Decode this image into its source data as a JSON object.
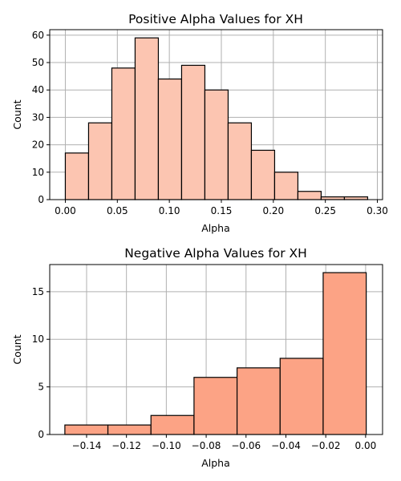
{
  "chart_data": [
    {
      "type": "bar",
      "title": "Positive Alpha Values for XH",
      "xlabel": "Alpha",
      "ylabel": "Count",
      "bar_color": "#fcc5b1",
      "xlim": [
        -0.015,
        0.305
      ],
      "ylim": [
        0,
        62
      ],
      "xticks": [
        0.0,
        0.05,
        0.1,
        0.15,
        0.2,
        0.25,
        0.3
      ],
      "xtick_labels": [
        "0.00",
        "0.05",
        "0.10",
        "0.15",
        "0.20",
        "0.25",
        "0.30"
      ],
      "yticks": [
        0,
        10,
        20,
        30,
        40,
        50,
        60
      ],
      "ytick_labels": [
        "0",
        "10",
        "20",
        "30",
        "40",
        "50",
        "60"
      ],
      "grid": true,
      "bins": [
        {
          "x0": 0.0,
          "x1": 0.02236,
          "count": 17
        },
        {
          "x0": 0.02236,
          "x1": 0.04472,
          "count": 28
        },
        {
          "x0": 0.04472,
          "x1": 0.06708,
          "count": 48
        },
        {
          "x0": 0.06708,
          "x1": 0.08944,
          "count": 59
        },
        {
          "x0": 0.08944,
          "x1": 0.1118,
          "count": 44
        },
        {
          "x0": 0.1118,
          "x1": 0.13416,
          "count": 49
        },
        {
          "x0": 0.13416,
          "x1": 0.15652,
          "count": 40
        },
        {
          "x0": 0.15652,
          "x1": 0.17888,
          "count": 28
        },
        {
          "x0": 0.17888,
          "x1": 0.20124,
          "count": 18
        },
        {
          "x0": 0.20124,
          "x1": 0.2236,
          "count": 10
        },
        {
          "x0": 0.2236,
          "x1": 0.24596,
          "count": 3
        },
        {
          "x0": 0.24596,
          "x1": 0.26832,
          "count": 1
        },
        {
          "x0": 0.26832,
          "x1": 0.29068,
          "count": 1
        }
      ]
    },
    {
      "type": "bar",
      "title": "Negative Alpha Values for XH",
      "xlabel": "Alpha",
      "ylabel": "Count",
      "bar_color": "#fca385",
      "xlim": [
        -0.1585,
        0.0085
      ],
      "ylim": [
        0,
        17.85
      ],
      "xticks": [
        -0.14,
        -0.12,
        -0.1,
        -0.08,
        -0.06,
        -0.04,
        -0.02,
        0.0
      ],
      "xtick_labels": [
        "−0.14",
        "−0.12",
        "−0.10",
        "−0.08",
        "−0.06",
        "−0.04",
        "−0.02",
        "0.00"
      ],
      "yticks": [
        0,
        5,
        10,
        15
      ],
      "ytick_labels": [
        "0",
        "5",
        "10",
        "15"
      ],
      "grid": true,
      "bins": [
        {
          "x0": -0.1509,
          "x1": -0.1293,
          "count": 1
        },
        {
          "x0": -0.1293,
          "x1": -0.1077,
          "count": 1
        },
        {
          "x0": -0.1077,
          "x1": -0.0861,
          "count": 2
        },
        {
          "x0": -0.0861,
          "x1": -0.0645,
          "count": 6
        },
        {
          "x0": -0.0645,
          "x1": -0.0429,
          "count": 7
        },
        {
          "x0": -0.0429,
          "x1": -0.0213,
          "count": 8
        },
        {
          "x0": -0.0213,
          "x1": 0.0003,
          "count": 17
        }
      ]
    }
  ]
}
